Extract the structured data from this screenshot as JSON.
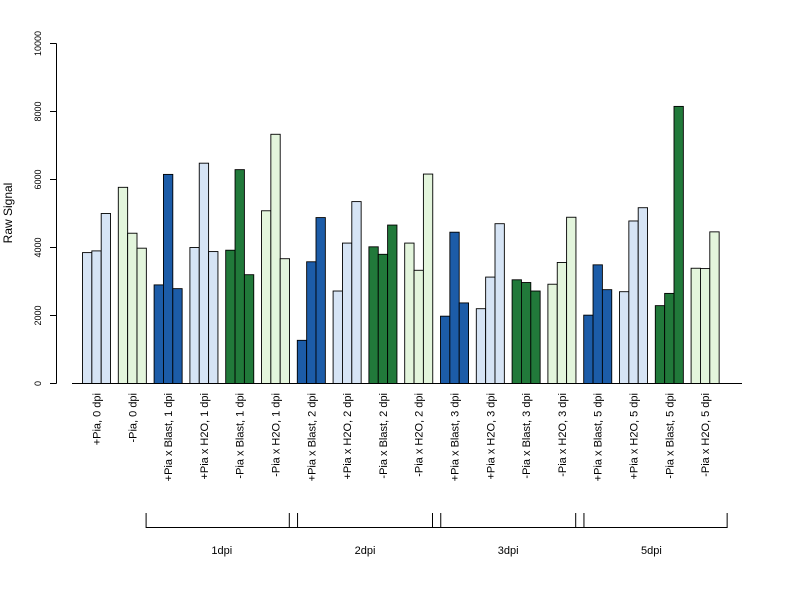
{
  "chart_data": {
    "type": "bar",
    "ylabel": "Raw Signal",
    "ylim": [
      0,
      10000
    ],
    "yticks": [
      0,
      2000,
      4000,
      6000,
      8000,
      10000
    ],
    "grid": false,
    "bars_per_group": 3,
    "categories": [
      "+Pia, 0 dpi",
      "-Pia, 0 dpi",
      "+Pia x Blast, 1 dpi",
      "+Pia x H2O, 1 dpi",
      "-Pia x Blast, 1 dpi",
      "-Pia x H2O, 1 dpi",
      "+Pia x Blast, 2 dpi",
      "+Pia x H2O, 2 dpi",
      "-Pia x Blast, 2 dpi",
      "-Pia x H2O, 2 dpi",
      "+Pia x Blast, 3 dpi",
      "+Pia x H2O, 3 dpi",
      "-Pia x Blast, 3 dpi",
      "-Pia x H2O, 3 dpi",
      "+Pia x Blast, 5 dpi",
      "+Pia x H2O, 5 dpi",
      "-Pia x Blast, 5 dpi",
      "-Pia x H2O, 5 dpi"
    ],
    "values": [
      [
        3850,
        3900,
        5000
      ],
      [
        5770,
        4420,
        3980
      ],
      [
        2900,
        6150,
        2790
      ],
      [
        4000,
        6480,
        3880
      ],
      [
        3920,
        6290,
        3200
      ],
      [
        5080,
        7330,
        3670
      ],
      [
        1270,
        3580,
        4880
      ],
      [
        2720,
        4130,
        5350
      ],
      [
        4020,
        3800,
        4660
      ],
      [
        4130,
        3330,
        6160
      ],
      [
        1980,
        4450,
        2370
      ],
      [
        2200,
        3130,
        4700
      ],
      [
        3050,
        2970,
        2720
      ],
      [
        2920,
        3560,
        4890
      ],
      [
        2010,
        3490,
        2760
      ],
      [
        2700,
        4780,
        5170
      ],
      [
        2290,
        2650,
        8150
      ],
      [
        3390,
        3380,
        4460
      ]
    ],
    "bar_colors": [
      "#d6e4f5",
      "#e3f5dc",
      "#1c5ca8",
      "#d6e4f5",
      "#21793a",
      "#e3f5dc",
      "#1c5ca8",
      "#d6e4f5",
      "#21793a",
      "#e3f5dc",
      "#1c5ca8",
      "#d6e4f5",
      "#21793a",
      "#e3f5dc",
      "#1c5ca8",
      "#d6e4f5",
      "#21793a",
      "#e3f5dc"
    ],
    "time_groups": [
      {
        "label": "1dpi",
        "from": 2,
        "to": 5
      },
      {
        "label": "2dpi",
        "from": 6,
        "to": 9
      },
      {
        "label": "3dpi",
        "from": 10,
        "to": 13
      },
      {
        "label": "5dpi",
        "from": 14,
        "to": 17
      }
    ]
  }
}
